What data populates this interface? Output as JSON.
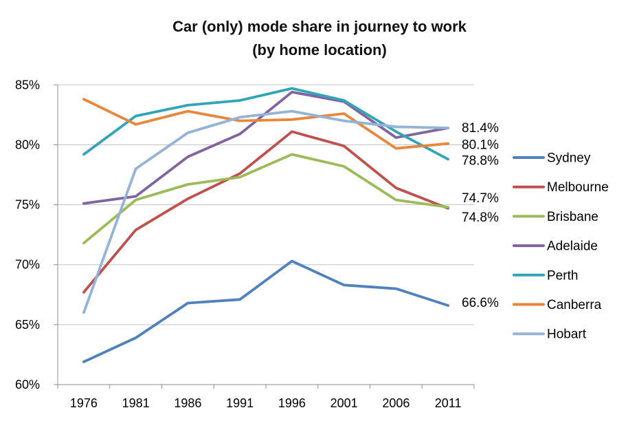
{
  "title": {
    "line1": "Car (only) mode share in journey to work",
    "line2": "(by home location)"
  },
  "chart_data": {
    "type": "line",
    "categories": [
      "1976",
      "1981",
      "1986",
      "1991",
      "1996",
      "2001",
      "2006",
      "2011"
    ],
    "series": [
      {
        "name": "Sydney",
        "color": "#4F81BD",
        "values": [
          61.9,
          63.9,
          66.8,
          67.1,
          70.3,
          68.3,
          68.0,
          66.6
        ]
      },
      {
        "name": "Melbourne",
        "color": "#C0504D",
        "values": [
          67.7,
          72.9,
          75.5,
          77.6,
          81.1,
          79.9,
          76.4,
          74.7
        ]
      },
      {
        "name": "Brisbane",
        "color": "#9BBB59",
        "values": [
          71.8,
          75.4,
          76.7,
          77.3,
          79.2,
          78.2,
          75.4,
          74.8
        ]
      },
      {
        "name": "Adelaide",
        "color": "#8064A2",
        "values": [
          75.1,
          75.7,
          79.0,
          80.9,
          84.4,
          83.6,
          80.6,
          81.4
        ]
      },
      {
        "name": "Perth",
        "color": "#33A4B8",
        "values": [
          79.2,
          82.4,
          83.3,
          83.7,
          84.7,
          83.7,
          81.1,
          78.8
        ]
      },
      {
        "name": "Canberra",
        "color": "#E8873B",
        "values": [
          83.8,
          81.7,
          82.8,
          82.0,
          82.1,
          82.6,
          79.7,
          80.1
        ]
      },
      {
        "name": "Hobart",
        "color": "#95B3D7",
        "values": [
          66.0,
          78.0,
          81.0,
          82.3,
          82.8,
          82.0,
          81.5,
          81.4
        ]
      }
    ],
    "ylim": [
      60,
      85
    ],
    "yticks": [
      {
        "v": 85,
        "label": "85%"
      },
      {
        "v": 80,
        "label": "80%"
      },
      {
        "v": 75,
        "label": "75%"
      },
      {
        "v": 70,
        "label": "70%"
      },
      {
        "v": 65,
        "label": "65%"
      },
      {
        "v": 60,
        "label": "60%"
      }
    ],
    "end_labels": [
      {
        "label": "81.4%",
        "v": 81.4
      },
      {
        "label": "80.1%",
        "v": 80.1
      },
      {
        "label": "78.8%",
        "v": 78.8
      },
      {
        "label": "74.7%",
        "v": 74.7
      },
      {
        "label": "74.8%",
        "v": 74.8
      },
      {
        "label": "66.6%",
        "v": 66.6
      }
    ],
    "legend_position": "right",
    "grid": true,
    "colors": {
      "gridline": "#C3C3C3",
      "axis": "#8C8C8C",
      "text": "#000000"
    }
  }
}
